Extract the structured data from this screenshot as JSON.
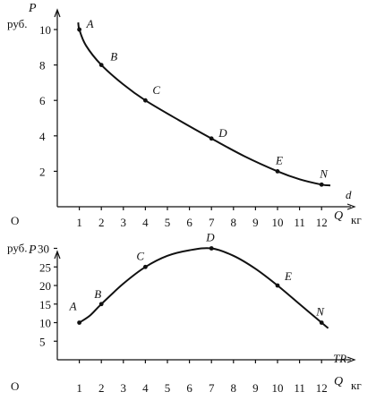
{
  "chart_data": [
    {
      "type": "line",
      "ylabel": "P",
      "yunit": "руб.",
      "xlabel": "Q",
      "xunit": "кг",
      "origin_label": "O",
      "curve_label": "d",
      "x_ticks": [
        "1",
        "2",
        "3",
        "4",
        "5",
        "6",
        "7",
        "8",
        "9",
        "10",
        "11",
        "12"
      ],
      "y_ticks": [
        "2",
        "4",
        "6",
        "8",
        "10"
      ],
      "xlim": [
        0,
        13
      ],
      "ylim": [
        0,
        11
      ],
      "curve_points": [
        [
          0.95,
          10.4
        ],
        [
          1,
          10
        ],
        [
          1.3,
          9.1
        ],
        [
          2,
          8
        ],
        [
          3,
          6.9
        ],
        [
          4,
          6
        ],
        [
          5.5,
          4.9
        ],
        [
          7,
          3.85
        ],
        [
          8.5,
          2.85
        ],
        [
          10,
          2
        ],
        [
          11,
          1.55
        ],
        [
          12,
          1.25
        ],
        [
          12.4,
          1.2
        ]
      ],
      "points": [
        {
          "label": "A",
          "x": 1,
          "y": 10
        },
        {
          "label": "B",
          "x": 2,
          "y": 8
        },
        {
          "label": "C",
          "x": 4,
          "y": 6
        },
        {
          "label": "D",
          "x": 7,
          "y": 3.85
        },
        {
          "label": "E",
          "x": 10,
          "y": 2
        },
        {
          "label": "N",
          "x": 12,
          "y": 1.25
        }
      ]
    },
    {
      "type": "line",
      "ylabel": "P",
      "yunit": "руб.",
      "xlabel": "Q",
      "xunit": "кг",
      "origin_label": "O",
      "curve_label": "TR",
      "x_ticks": [
        "1",
        "2",
        "3",
        "4",
        "5",
        "6",
        "7",
        "8",
        "9",
        "10",
        "11",
        "12"
      ],
      "y_ticks": [
        "5",
        "10",
        "15",
        "20",
        "25",
        "30"
      ],
      "xlim": [
        0,
        13
      ],
      "ylim": [
        0,
        32
      ],
      "curve_points": [
        [
          1,
          10
        ],
        [
          1.5,
          12
        ],
        [
          2,
          15
        ],
        [
          3,
          20.5
        ],
        [
          4,
          25
        ],
        [
          5,
          28
        ],
        [
          6,
          29.5
        ],
        [
          7,
          30
        ],
        [
          8,
          28
        ],
        [
          9,
          24.5
        ],
        [
          10,
          20
        ],
        [
          11,
          15
        ],
        [
          12,
          10
        ],
        [
          12.3,
          8.5
        ]
      ],
      "points": [
        {
          "label": "A",
          "x": 1,
          "y": 10
        },
        {
          "label": "B",
          "x": 2,
          "y": 15
        },
        {
          "label": "C",
          "x": 4,
          "y": 25
        },
        {
          "label": "D",
          "x": 7,
          "y": 30
        },
        {
          "label": "E",
          "x": 10,
          "y": 20
        },
        {
          "label": "N",
          "x": 12,
          "y": 10
        }
      ]
    }
  ]
}
